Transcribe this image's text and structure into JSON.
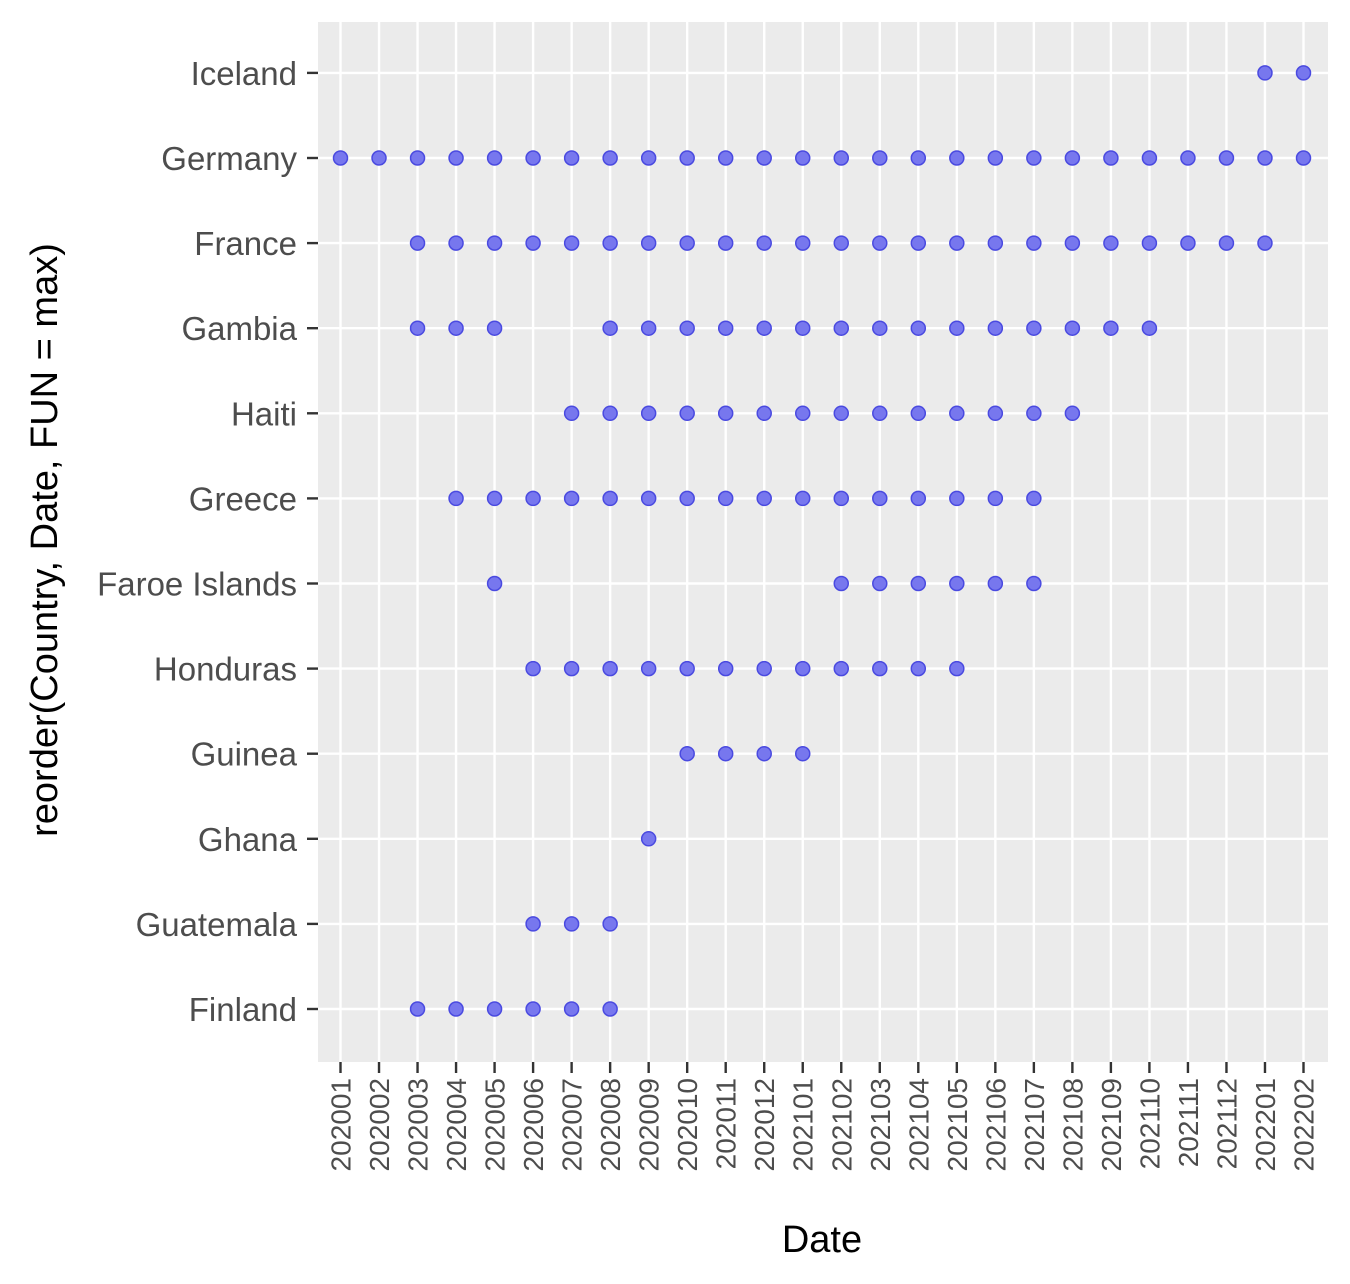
{
  "chart_data": {
    "type": "scatter",
    "title": "",
    "xlabel": "Date",
    "ylabel": "reorder(Country, Date, FUN = max)",
    "x_categories": [
      "202001",
      "202002",
      "202003",
      "202004",
      "202005",
      "202006",
      "202007",
      "202008",
      "202009",
      "202010",
      "202011",
      "202012",
      "202101",
      "202102",
      "202103",
      "202104",
      "202105",
      "202106",
      "202107",
      "202108",
      "202109",
      "202110",
      "202111",
      "202112",
      "202201",
      "202202"
    ],
    "y_categories": [
      "Finland",
      "Guatemala",
      "Ghana",
      "Guinea",
      "Honduras",
      "Faroe Islands",
      "Greece",
      "Haiti",
      "Gambia",
      "France",
      "Germany",
      "Iceland"
    ],
    "grid": true,
    "legend": "none",
    "colors": {
      "point_fill": "#7777ee",
      "point_stroke": "#4a4ae0",
      "panel_bg": "#ebebeb",
      "grid": "#ffffff"
    },
    "points": [
      {
        "country": "Iceland",
        "dates": [
          "202201",
          "202202"
        ]
      },
      {
        "country": "Germany",
        "dates": [
          "202001",
          "202002",
          "202003",
          "202004",
          "202005",
          "202006",
          "202007",
          "202008",
          "202009",
          "202010",
          "202011",
          "202012",
          "202101",
          "202102",
          "202103",
          "202104",
          "202105",
          "202106",
          "202107",
          "202108",
          "202109",
          "202110",
          "202111",
          "202112",
          "202201",
          "202202"
        ]
      },
      {
        "country": "France",
        "dates": [
          "202003",
          "202004",
          "202005",
          "202006",
          "202007",
          "202008",
          "202009",
          "202010",
          "202011",
          "202012",
          "202101",
          "202102",
          "202103",
          "202104",
          "202105",
          "202106",
          "202107",
          "202108",
          "202109",
          "202110",
          "202111",
          "202112",
          "202201"
        ]
      },
      {
        "country": "Gambia",
        "dates": [
          "202003",
          "202004",
          "202005",
          "202008",
          "202009",
          "202010",
          "202011",
          "202012",
          "202101",
          "202102",
          "202103",
          "202104",
          "202105",
          "202106",
          "202107",
          "202108",
          "202109",
          "202110"
        ]
      },
      {
        "country": "Haiti",
        "dates": [
          "202007",
          "202008",
          "202009",
          "202010",
          "202011",
          "202012",
          "202101",
          "202102",
          "202103",
          "202104",
          "202105",
          "202106",
          "202107",
          "202108"
        ]
      },
      {
        "country": "Greece",
        "dates": [
          "202004",
          "202005",
          "202006",
          "202007",
          "202008",
          "202009",
          "202010",
          "202011",
          "202012",
          "202101",
          "202102",
          "202103",
          "202104",
          "202105",
          "202106",
          "202107"
        ]
      },
      {
        "country": "Faroe Islands",
        "dates": [
          "202005",
          "202102",
          "202103",
          "202104",
          "202105",
          "202106",
          "202107"
        ]
      },
      {
        "country": "Honduras",
        "dates": [
          "202006",
          "202007",
          "202008",
          "202009",
          "202010",
          "202011",
          "202012",
          "202101",
          "202102",
          "202103",
          "202104",
          "202105"
        ]
      },
      {
        "country": "Guinea",
        "dates": [
          "202010",
          "202011",
          "202012",
          "202101"
        ]
      },
      {
        "country": "Ghana",
        "dates": [
          "202009"
        ]
      },
      {
        "country": "Guatemala",
        "dates": [
          "202006",
          "202007",
          "202008"
        ]
      },
      {
        "country": "Finland",
        "dates": [
          "202003",
          "202004",
          "202005",
          "202006",
          "202007",
          "202008"
        ]
      }
    ]
  }
}
